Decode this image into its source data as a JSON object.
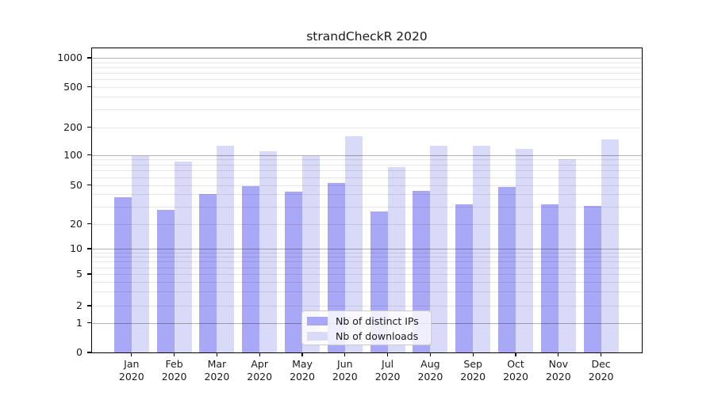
{
  "title": "strandCheckR 2020",
  "colors": {
    "bar_ips": "#a8a8f7",
    "bar_downloads": "#d9d9f8",
    "grid_major": "rgba(0,0,0,0.30)",
    "grid_minor": "rgba(0,0,0,0.095)",
    "spine": "#000000",
    "background": "#ffffff"
  },
  "legend": {
    "items": [
      {
        "label": "Nb of distinct IPs",
        "series": "ips"
      },
      {
        "label": "Nb of downloads",
        "series": "downloads"
      }
    ]
  },
  "chart_data": {
    "type": "bar",
    "title": "strandCheckR 2020",
    "categories": [
      "Jan 2020",
      "Feb 2020",
      "Mar 2020",
      "Apr 2020",
      "May 2020",
      "Jun 2020",
      "Jul 2020",
      "Aug 2020",
      "Sep 2020",
      "Oct 2020",
      "Nov 2020",
      "Dec 2020"
    ],
    "series": [
      {
        "name": "Nb of distinct IPs",
        "color": "#a8a8f7",
        "values": [
          38,
          28,
          41,
          49,
          43,
          53,
          27,
          44,
          32,
          48,
          32,
          31
        ]
      },
      {
        "name": "Nb of downloads",
        "color": "#d9d9f8",
        "values": [
          98,
          87,
          128,
          110,
          98,
          162,
          76,
          126,
          126,
          118,
          91,
          150
        ]
      }
    ],
    "xlabel": "",
    "ylabel": "",
    "yscale": "symlog",
    "yticks": [
      1000,
      500,
      200,
      100,
      50,
      20,
      10,
      5,
      2,
      1,
      0
    ],
    "ylim": [
      0,
      1280
    ],
    "grid": "both",
    "legend_position": "lower center"
  }
}
